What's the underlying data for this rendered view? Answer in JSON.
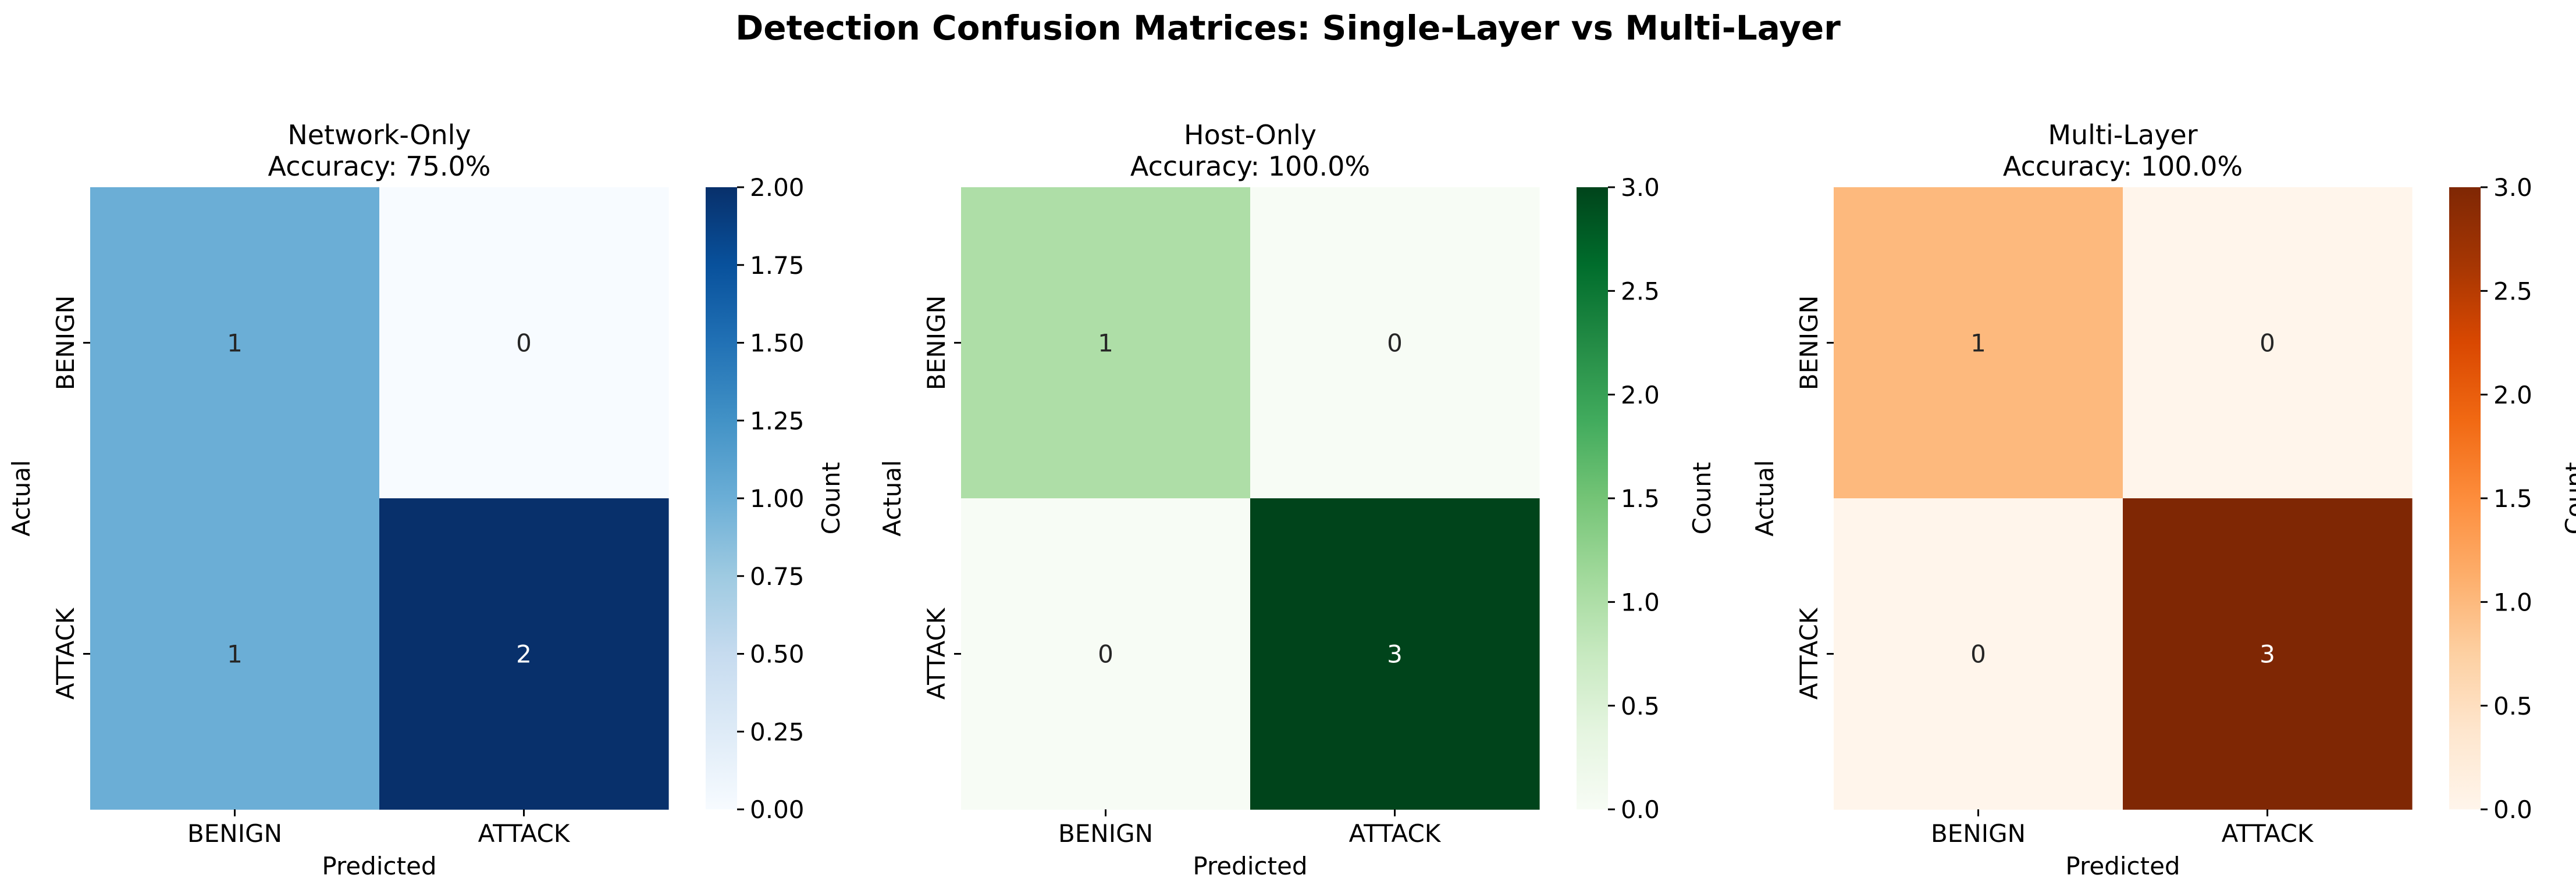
{
  "figure": {
    "title": "Detection Confusion Matrices: Single-Layer vs Multi-Layer"
  },
  "chart_data": [
    {
      "type": "heatmap",
      "title": "Network-Only",
      "subtitle": "Accuracy: 75.0%",
      "xlabel": "Predicted",
      "ylabel": "Actual",
      "x_categories": [
        "BENIGN",
        "ATTACK"
      ],
      "y_categories": [
        "BENIGN",
        "ATTACK"
      ],
      "values": [
        [
          1,
          0
        ],
        [
          1,
          2
        ]
      ],
      "colormap": "Blues",
      "colorbar": {
        "label": "Count",
        "range": [
          0,
          2
        ],
        "ticks": [
          0,
          0.25,
          0.5,
          0.75,
          1.0,
          1.25,
          1.5,
          1.75,
          2.0
        ],
        "tick_labels": [
          "0.00",
          "0.25",
          "0.50",
          "0.75",
          "1.00",
          "1.25",
          "1.50",
          "1.75",
          "2.00"
        ],
        "stops": [
          "#f7fbff",
          "#deebf7",
          "#c6dbef",
          "#9ecae1",
          "#6baed6",
          "#4292c6",
          "#2171b5",
          "#08519c",
          "#08306b"
        ]
      }
    },
    {
      "type": "heatmap",
      "title": "Host-Only",
      "subtitle": "Accuracy: 100.0%",
      "xlabel": "Predicted",
      "ylabel": "Actual",
      "x_categories": [
        "BENIGN",
        "ATTACK"
      ],
      "y_categories": [
        "BENIGN",
        "ATTACK"
      ],
      "values": [
        [
          1,
          0
        ],
        [
          0,
          3
        ]
      ],
      "colormap": "Greens",
      "colorbar": {
        "label": "Count",
        "range": [
          0,
          3
        ],
        "ticks": [
          0,
          0.5,
          1.0,
          1.5,
          2.0,
          2.5,
          3.0
        ],
        "tick_labels": [
          "0.0",
          "0.5",
          "1.0",
          "1.5",
          "2.0",
          "2.5",
          "3.0"
        ],
        "stops": [
          "#f7fcf5",
          "#e5f5e0",
          "#c7e9c0",
          "#a1d99b",
          "#74c476",
          "#41ab5d",
          "#238b45",
          "#006d2c",
          "#00441b"
        ]
      }
    },
    {
      "type": "heatmap",
      "title": "Multi-Layer",
      "subtitle": "Accuracy: 100.0%",
      "xlabel": "Predicted",
      "ylabel": "Actual",
      "x_categories": [
        "BENIGN",
        "ATTACK"
      ],
      "y_categories": [
        "BENIGN",
        "ATTACK"
      ],
      "values": [
        [
          1,
          0
        ],
        [
          0,
          3
        ]
      ],
      "colormap": "Oranges",
      "colorbar": {
        "label": "Count",
        "range": [
          0,
          3
        ],
        "ticks": [
          0,
          0.5,
          1.0,
          1.5,
          2.0,
          2.5,
          3.0
        ],
        "tick_labels": [
          "0.0",
          "0.5",
          "1.0",
          "1.5",
          "2.0",
          "2.5",
          "3.0"
        ],
        "stops": [
          "#fff5eb",
          "#fee6ce",
          "#fdd0a2",
          "#fdae6b",
          "#fd8d3c",
          "#f16913",
          "#d94801",
          "#a63603",
          "#7f2704"
        ]
      }
    }
  ]
}
